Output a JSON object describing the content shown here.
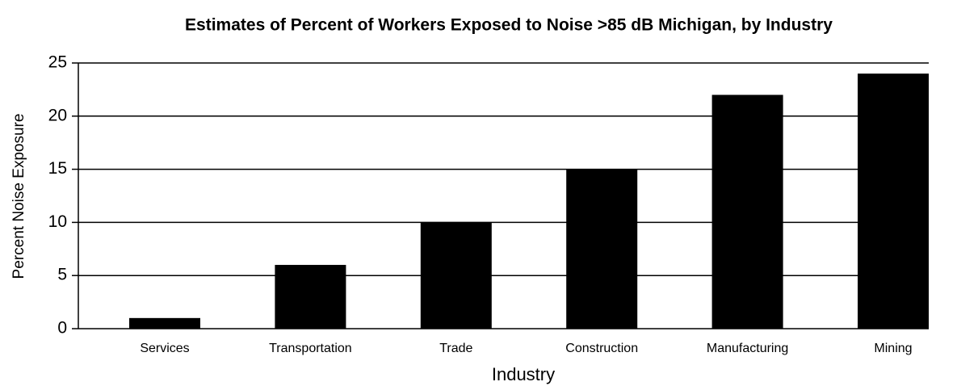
{
  "chart_data": {
    "type": "bar",
    "title": "Estimates of Percent of Workers Exposed to Noise >85 dB Michigan, by Industry",
    "x_label": "Industry",
    "y_label": "Percent Noise Exposure",
    "categories": [
      "Services",
      "Transportation",
      "Trade",
      "Construction",
      "Manufacturing",
      "Mining"
    ],
    "values": [
      1,
      6,
      10,
      15,
      22,
      24
    ],
    "color": "#000000",
    "ylim": [
      0,
      25
    ],
    "yticks": [
      0,
      5,
      10,
      15,
      20,
      25
    ],
    "grid": true
  }
}
